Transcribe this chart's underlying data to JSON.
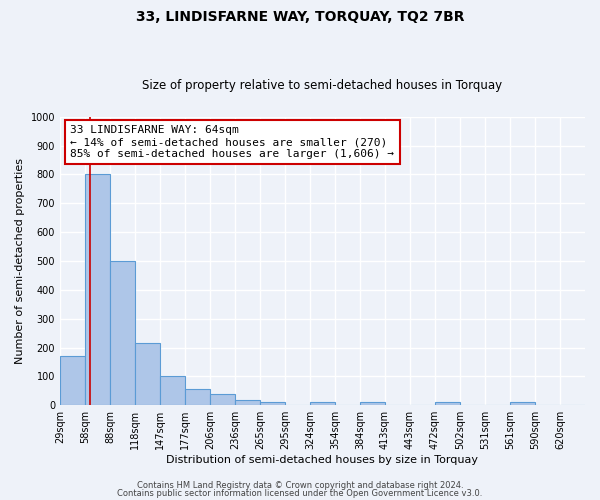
{
  "title": "33, LINDISFARNE WAY, TORQUAY, TQ2 7BR",
  "subtitle": "Size of property relative to semi-detached houses in Torquay",
  "xlabel": "Distribution of semi-detached houses by size in Torquay",
  "ylabel": "Number of semi-detached properties",
  "bin_labels": [
    "29sqm",
    "58sqm",
    "88sqm",
    "118sqm",
    "147sqm",
    "177sqm",
    "206sqm",
    "236sqm",
    "265sqm",
    "295sqm",
    "324sqm",
    "354sqm",
    "384sqm",
    "413sqm",
    "443sqm",
    "472sqm",
    "502sqm",
    "531sqm",
    "561sqm",
    "590sqm",
    "620sqm"
  ],
  "bar_heights": [
    170,
    800,
    500,
    215,
    100,
    55,
    38,
    18,
    10,
    0,
    10,
    0,
    10,
    0,
    0,
    10,
    0,
    0,
    10,
    0,
    0
  ],
  "bar_color": "#aec6e8",
  "bar_edge_color": "#5b9bd5",
  "red_line_x": 1.2,
  "annotation_title": "33 LINDISFARNE WAY: 64sqm",
  "annotation_line1": "← 14% of semi-detached houses are smaller (270)",
  "annotation_line2": "85% of semi-detached houses are larger (1,606) →",
  "annotation_box_color": "#ffffff",
  "annotation_box_edge_color": "#cc0000",
  "red_line_color": "#cc0000",
  "ylim": [
    0,
    1000
  ],
  "yticks": [
    0,
    100,
    200,
    300,
    400,
    500,
    600,
    700,
    800,
    900,
    1000
  ],
  "footer1": "Contains HM Land Registry data © Crown copyright and database right 2024.",
  "footer2": "Contains public sector information licensed under the Open Government Licence v3.0.",
  "background_color": "#eef2f9",
  "grid_color": "#ffffff",
  "title_fontsize": 10,
  "subtitle_fontsize": 8.5,
  "axis_label_fontsize": 8,
  "tick_fontsize": 7,
  "annotation_fontsize": 8,
  "footer_fontsize": 6
}
